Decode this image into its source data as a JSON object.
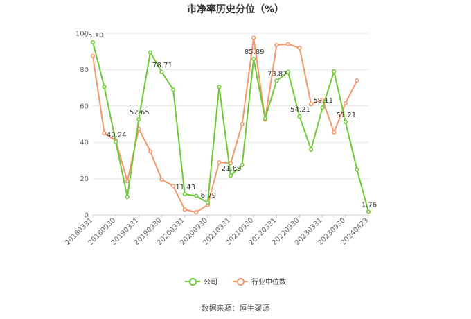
{
  "title": "市净率历史分位（%）",
  "source": "数据来源：恒生聚源",
  "chart_data": {
    "type": "line",
    "title": "市净率历史分位（%）",
    "ylim": [
      0,
      100
    ],
    "yticks": [
      0,
      20,
      40,
      60,
      80,
      100
    ],
    "x_tick_labels": [
      "20180331",
      "20180930",
      "20190331",
      "20190930",
      "20200331",
      "20200930",
      "20210331",
      "20210930",
      "20220331",
      "20220930",
      "20230331",
      "20230930",
      "20240423"
    ],
    "grid": "horizontal",
    "legend_position": "bottom",
    "series": [
      {
        "name": "公司",
        "color": "#6ec934",
        "values": [
          95.1,
          70.5,
          40.24,
          10.0,
          52.65,
          89.5,
          78.71,
          69.0,
          11.43,
          10.5,
          6.79,
          70.5,
          21.69,
          27.5,
          85.89,
          53.0,
          73.87,
          78.7,
          54.21,
          36.0,
          59.11,
          79.0,
          51.21,
          25.0,
          1.76
        ],
        "data_labels": [
          {
            "index": 0,
            "text": "95.10"
          },
          {
            "index": 2,
            "text": "40.24"
          },
          {
            "index": 4,
            "text": "52.65"
          },
          {
            "index": 6,
            "text": "78.71"
          },
          {
            "index": 8,
            "text": "11.43"
          },
          {
            "index": 10,
            "text": "6.79"
          },
          {
            "index": 12,
            "text": "21.69"
          },
          {
            "index": 14,
            "text": "85.89"
          },
          {
            "index": 16,
            "text": "73.87"
          },
          {
            "index": 18,
            "text": "54.21"
          },
          {
            "index": 20,
            "text": "59.11"
          },
          {
            "index": 22,
            "text": "51.21"
          },
          {
            "index": 24,
            "text": "1.76"
          }
        ]
      },
      {
        "name": "行业中位数",
        "color": "#f4956a",
        "values": [
          87.5,
          45.0,
          41.0,
          18.5,
          47.5,
          35.0,
          19.5,
          16.0,
          3.0,
          1.5,
          5.5,
          29.0,
          28.5,
          50.0,
          97.5,
          52.5,
          93.5,
          94.0,
          92.0,
          61.0,
          63.5,
          45.5,
          61.5,
          74.0,
          null
        ]
      }
    ]
  }
}
